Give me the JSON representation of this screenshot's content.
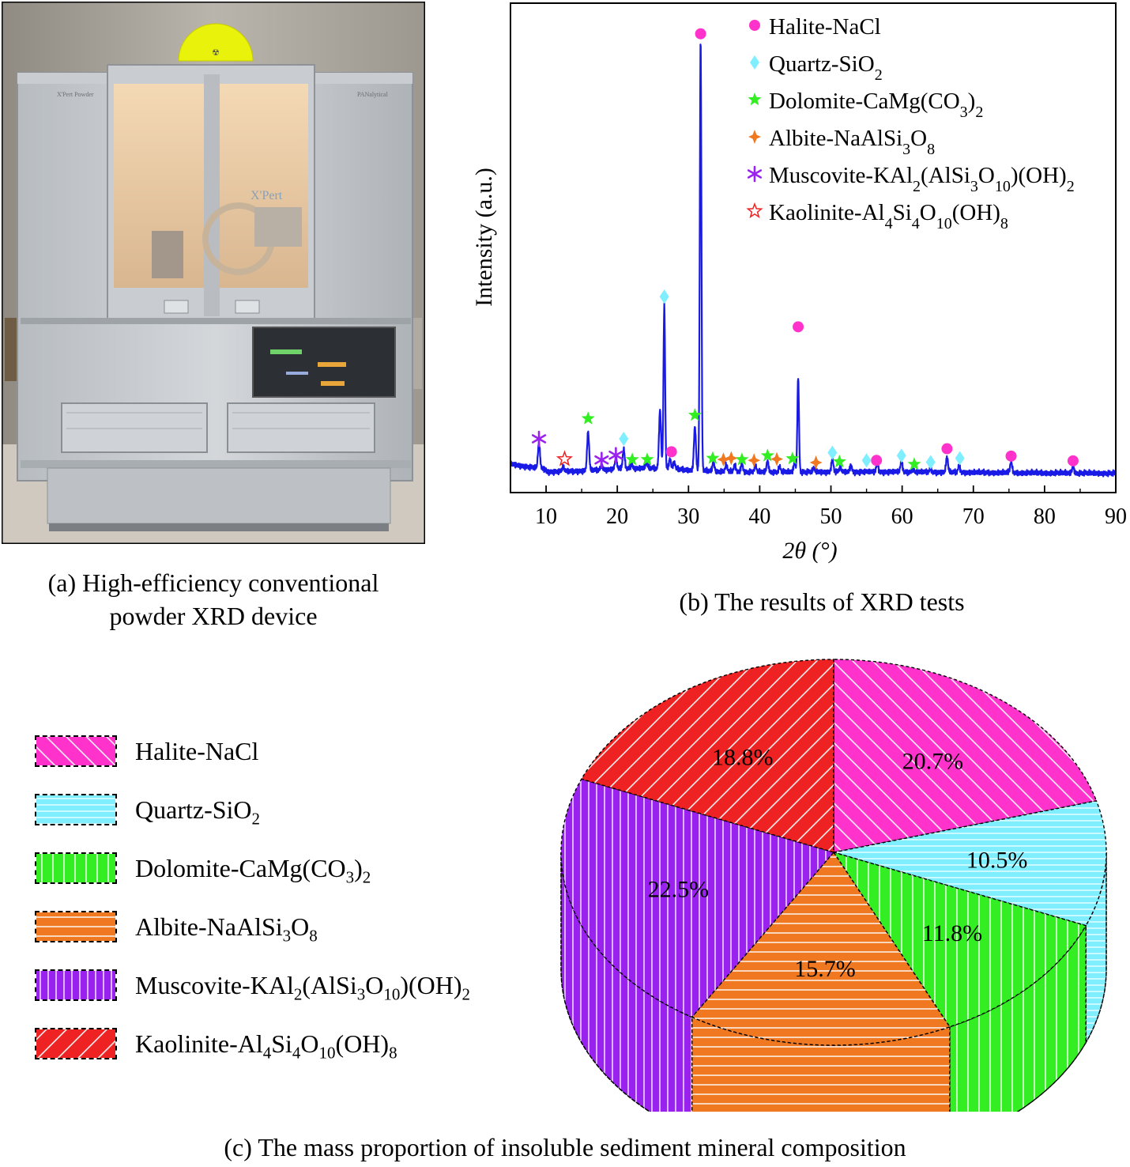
{
  "panel_a": {
    "caption_line1": "(a) High-efficiency conventional",
    "caption_line2": "powder XRD device",
    "photo_texts": {
      "model": "X'Pert Powder",
      "brand": "PANalytical",
      "inner": "X'Pert"
    }
  },
  "panel_b": {
    "caption": "(b) The results of XRD tests"
  },
  "panel_c": {
    "caption": "(c) The mass proportion of insoluble sediment mineral composition"
  },
  "colors": {
    "halite": "#ff33cc",
    "quartz": "#7fefff",
    "dolomite": "#33ee22",
    "albite": "#f07820",
    "muscovite": "#9a22ee",
    "kaolinite": "#ee2222",
    "line": "#1a1ae6"
  },
  "chart_data": [
    {
      "type": "line",
      "xlabel": "2θ (°)",
      "ylabel": "Intensity (a.u.)",
      "xlim": [
        5,
        90
      ],
      "xticks": [
        10,
        20,
        30,
        40,
        50,
        60,
        70,
        80,
        90
      ],
      "y_units": "arbitrary (relative intensity, 0–100)",
      "legend_position": "top-right",
      "legend": [
        {
          "marker": "circle",
          "base": "Halite-NaCl",
          "parts": [
            [
              "Halite-NaCl",
              ""
            ]
          ]
        },
        {
          "marker": "diamond",
          "base": "Quartz-SiO2",
          "parts": [
            [
              "Quartz-SiO",
              ""
            ],
            [
              "2",
              "sub"
            ]
          ]
        },
        {
          "marker": "star",
          "base": "Dolomite-CaMg(CO3)2",
          "parts": [
            [
              "Dolomite-CaMg(CO",
              ""
            ],
            [
              "3",
              "sub"
            ],
            [
              ")",
              ""
            ],
            [
              "2",
              "sub"
            ]
          ]
        },
        {
          "marker": "sparkle",
          "base": "Albite-NaAlSi3O8",
          "parts": [
            [
              "Albite-NaAlSi",
              ""
            ],
            [
              "3",
              "sub"
            ],
            [
              "O",
              ""
            ],
            [
              "8",
              "sub"
            ]
          ]
        },
        {
          "marker": "asterisk",
          "base": "Muscovite-KAl2(AlSi3O10)(OH)2",
          "parts": [
            [
              "Muscovite-KAl",
              ""
            ],
            [
              "2",
              "sub"
            ],
            [
              "(AlSi",
              ""
            ],
            [
              "3",
              "sub"
            ],
            [
              "O",
              ""
            ],
            [
              "10",
              "sub"
            ],
            [
              ")(OH)",
              ""
            ],
            [
              "2",
              "sub"
            ]
          ]
        },
        {
          "marker": "open-star",
          "base": "Kaolinite-Al4Si4O10(OH)8",
          "parts": [
            [
              "Kaolinite-Al",
              ""
            ],
            [
              "4",
              "sub"
            ],
            [
              "Si",
              ""
            ],
            [
              "4",
              "sub"
            ],
            [
              "O",
              ""
            ],
            [
              "10",
              "sub"
            ],
            [
              "(OH)",
              ""
            ],
            [
              "8",
              "sub"
            ]
          ]
        }
      ],
      "peaks": [
        [
          9.0,
          6.0
        ],
        [
          12.4,
          1.0
        ],
        [
          15.9,
          9.0
        ],
        [
          17.8,
          1.2
        ],
        [
          19.8,
          2.5
        ],
        [
          20.9,
          4.5
        ],
        [
          22.0,
          1.0
        ],
        [
          24.1,
          1.2
        ],
        [
          26.0,
          13.5
        ],
        [
          26.6,
          38.0
        ],
        [
          27.4,
          2.2
        ],
        [
          28.0,
          1.5
        ],
        [
          30.9,
          10.0
        ],
        [
          31.7,
          100.0
        ],
        [
          33.5,
          2.0
        ],
        [
          35.3,
          1.5
        ],
        [
          36.5,
          1.5
        ],
        [
          37.5,
          1.8
        ],
        [
          39.4,
          1.5
        ],
        [
          41.1,
          2.5
        ],
        [
          42.8,
          1.2
        ],
        [
          44.9,
          2.2
        ],
        [
          45.4,
          22.0
        ],
        [
          47.6,
          0.8
        ],
        [
          50.2,
          3.0
        ],
        [
          51.3,
          1.0
        ],
        [
          52.8,
          1.5
        ],
        [
          56.5,
          2.0
        ],
        [
          59.9,
          2.5
        ],
        [
          61.5,
          0.8
        ],
        [
          64.0,
          0.8
        ],
        [
          66.3,
          3.5
        ],
        [
          68.0,
          1.5
        ],
        [
          75.3,
          2.5
        ],
        [
          84.0,
          1.5
        ]
      ],
      "markers": [
        {
          "m": "circle",
          "x": [
            31.7,
            45.4,
            27.6,
            56.4,
            66.3,
            75.3,
            84.0
          ],
          "y": [
            99.5,
            31.5,
            2.5,
            0.5,
            3.2,
            1.5,
            0.4
          ]
        },
        {
          "m": "diamond",
          "x": [
            26.6,
            20.9,
            50.2,
            55.0,
            59.9,
            64.0,
            68.1
          ],
          "y": [
            38.5,
            5.5,
            2.3,
            0.5,
            1.6,
            0.1,
            1.0
          ]
        },
        {
          "m": "star",
          "x": [
            15.9,
            30.9,
            22.1,
            24.2,
            33.4,
            37.5,
            41.1,
            44.6,
            51.2,
            61.7
          ],
          "y": [
            10.2,
            11.0,
            0.7,
            0.7,
            1.0,
            0.7,
            1.6,
            0.9,
            0.2,
            -0.4
          ]
        },
        {
          "m": "sparkle",
          "x": [
            34.9,
            36.0,
            39.2,
            42.4,
            47.9
          ],
          "y": [
            0.7,
            1.0,
            0.5,
            0.8,
            0.0
          ]
        },
        {
          "m": "asterisk",
          "x": [
            9.0,
            17.8,
            19.8
          ],
          "y": [
            5.5,
            0.6,
            1.7
          ]
        },
        {
          "m": "open-star",
          "x": [
            12.6
          ],
          "y": [
            0.8
          ]
        }
      ]
    },
    {
      "type": "pie",
      "style": "3D hatched",
      "legend_position": "left",
      "slices": [
        {
          "key": "halite",
          "label": "Halite-NaCl",
          "parts": [
            [
              "Halite-NaCl",
              ""
            ]
          ],
          "value": 20.7,
          "pct": "20.7%",
          "hatch": "diag-right"
        },
        {
          "key": "quartz",
          "label": "Quartz-SiO2",
          "parts": [
            [
              "Quartz-SiO",
              ""
            ],
            [
              "2",
              "sub"
            ]
          ],
          "value": 10.5,
          "pct": "10.5%",
          "hatch": "horizontal-dense"
        },
        {
          "key": "dolomite",
          "label": "Dolomite-CaMg(CO3)2",
          "parts": [
            [
              "Dolomite-CaMg(CO",
              ""
            ],
            [
              "3",
              "sub"
            ],
            [
              ")",
              ""
            ],
            [
              "2",
              "sub"
            ]
          ],
          "value": 11.8,
          "pct": "11.8%",
          "hatch": "vertical"
        },
        {
          "key": "albite",
          "label": "Albite-NaAlSi3O8",
          "parts": [
            [
              "Albite-NaAlSi",
              ""
            ],
            [
              "3",
              "sub"
            ],
            [
              "O",
              ""
            ],
            [
              "8",
              "sub"
            ]
          ],
          "value": 15.7,
          "pct": "15.7%",
          "hatch": "horizontal"
        },
        {
          "key": "muscovite",
          "label": "Muscovite-KAl2(AlSi3O10)(OH)2",
          "parts": [
            [
              "Muscovite-KAl",
              ""
            ],
            [
              "2",
              "sub"
            ],
            [
              "(AlSi",
              ""
            ],
            [
              "3",
              "sub"
            ],
            [
              "O",
              ""
            ],
            [
              "10",
              "sub"
            ],
            [
              ")(OH)",
              ""
            ],
            [
              "2",
              "sub"
            ]
          ],
          "value": 22.5,
          "pct": "22.5%",
          "hatch": "vertical-dense"
        },
        {
          "key": "kaolinite",
          "label": "Kaolinite-Al4Si4O10(OH)8",
          "parts": [
            [
              "Kaolinite-Al",
              ""
            ],
            [
              "4",
              "sub"
            ],
            [
              "Si",
              ""
            ],
            [
              "4",
              "sub"
            ],
            [
              "O",
              ""
            ],
            [
              "10",
              "sub"
            ],
            [
              "(OH)",
              ""
            ],
            [
              "8",
              "sub"
            ]
          ],
          "value": 18.8,
          "pct": "18.8%",
          "hatch": "diag-left"
        }
      ]
    }
  ]
}
